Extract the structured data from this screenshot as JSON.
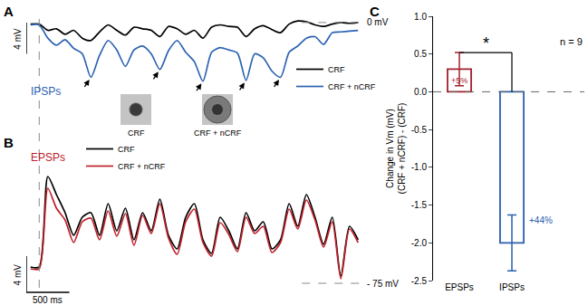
{
  "chart_data": [
    {
      "panel": "A",
      "type": "line",
      "tick_labels": false,
      "x": [
        -100,
        0,
        100,
        200,
        300,
        400,
        500,
        600,
        700,
        800,
        900,
        1000,
        1100,
        1200,
        1300,
        1400,
        1500,
        1600,
        1700,
        1800,
        1900,
        2000,
        2100,
        2200,
        2300,
        2400,
        2500,
        2600,
        2700,
        2800,
        2900,
        3000,
        3100,
        3200,
        3300,
        3400,
        3500,
        3600,
        3700
      ],
      "xlim": [
        -150,
        3750
      ],
      "ylim": [
        -11,
        2.3
      ],
      "series": [
        {
          "name": "CRF",
          "color": "#000000",
          "values": [
            -0.2,
            -0.2,
            -1.0,
            -0.8,
            -1.5,
            -1.0,
            -2.0,
            -2.3,
            -1.2,
            -0.3,
            -1.0,
            -1.6,
            -0.6,
            -0.8,
            -1.0,
            -1.8,
            -0.5,
            -0.8,
            -1.5,
            -1.0,
            -2.0,
            -0.6,
            -0.3,
            -0.5,
            -0.6,
            -1.8,
            -0.8,
            -0.4,
            -0.9,
            -1.3,
            -0.2,
            0.2,
            0.1,
            -0.3,
            -0.5,
            -0.2,
            0.0,
            -0.1,
            0.0
          ]
        },
        {
          "name": "CRF + nCRF",
          "color": "#2b62b2",
          "values": [
            -0.3,
            -0.3,
            -2.0,
            -2.9,
            -2.2,
            -3.3,
            -4.0,
            -7.0,
            -4.2,
            -2.3,
            -3.5,
            -5.6,
            -3.5,
            -3.0,
            -4.0,
            -6.0,
            -3.6,
            -2.3,
            -3.8,
            -5.0,
            -7.5,
            -3.8,
            -3.2,
            -3.5,
            -3.9,
            -7.4,
            -4.0,
            -4.5,
            -6.2,
            -7.0,
            -3.8,
            -3.0,
            -2.0,
            -1.8,
            -2.8,
            -1.3,
            -1.2,
            -1.1,
            -1.0
          ]
        }
      ],
      "label": "IPSPs",
      "onset": 0,
      "reference_line": {
        "value": 0,
        "label": "0 mV"
      },
      "scale_bars": {
        "y": {
          "value": 4,
          "label": "4 mV"
        }
      },
      "stimuli": [
        "CRF",
        "CRF + nCRF"
      ]
    },
    {
      "panel": "B",
      "type": "line",
      "tick_labels": false,
      "x": [
        -100,
        0,
        100,
        200,
        300,
        400,
        500,
        600,
        700,
        800,
        900,
        1000,
        1100,
        1200,
        1300,
        1400,
        1500,
        1600,
        1700,
        1800,
        1900,
        2000,
        2100,
        2200,
        2300,
        2400,
        2500,
        2600,
        2700,
        2800,
        2900,
        3000,
        3100,
        3200,
        3300,
        3400,
        3500,
        3600,
        3700
      ],
      "xlim": [
        -150,
        3750
      ],
      "ylim": [
        -77,
        -58.7
      ],
      "series": [
        {
          "name": "CRF",
          "color": "#000000",
          "values": [
            -73.2,
            -73.2,
            -63.2,
            -65.2,
            -67.2,
            -69.7,
            -67.7,
            -67.2,
            -69.7,
            -66.2,
            -69.2,
            -66.7,
            -70.2,
            -67.2,
            -69.2,
            -65.7,
            -69.7,
            -71.2,
            -67.7,
            -66.2,
            -70.2,
            -71.7,
            -67.7,
            -69.2,
            -71.2,
            -67.2,
            -69.2,
            -68.2,
            -71.2,
            -70.2,
            -66.2,
            -68.7,
            -65.2,
            -67.7,
            -70.7,
            -67.7,
            -74.2,
            -68.7,
            -70.2
          ]
        },
        {
          "name": "CRF + nCRF",
          "color": "#c0202a",
          "values": [
            -73.4,
            -73.4,
            -64.5,
            -66.7,
            -68.0,
            -70.5,
            -68.2,
            -67.8,
            -70.2,
            -67.0,
            -69.8,
            -67.3,
            -70.8,
            -67.5,
            -69.5,
            -66.2,
            -70.0,
            -71.8,
            -68.2,
            -66.8,
            -70.5,
            -72.0,
            -68.3,
            -69.6,
            -71.5,
            -67.7,
            -69.5,
            -68.7,
            -71.6,
            -70.5,
            -66.8,
            -69.0,
            -65.8,
            -68.0,
            -71.0,
            -68.2,
            -74.5,
            -69.0,
            -70.5
          ]
        }
      ],
      "label": "EPSPs",
      "reference_line": {
        "value": -75,
        "label": "- 75 mV"
      },
      "scale_bars": {
        "x": {
          "value": 500,
          "label": "500 ms"
        },
        "y": {
          "value": 4,
          "label": "4 mV"
        }
      }
    },
    {
      "panel": "C",
      "type": "bar",
      "categories": [
        "EPSPs",
        "IPSPs"
      ],
      "values": [
        0.3,
        -2.0
      ],
      "errors": [
        0.22,
        0.37
      ],
      "colors": [
        "#a3202e",
        "#2b5fad"
      ],
      "percent_labels": [
        "+5%",
        "+44%"
      ],
      "y_label": [
        "Change in Vm (mV)",
        "(CRF + nCRF) - (CRF)"
      ],
      "ylim": [
        -2.5,
        1.0
      ],
      "yticks": [
        {
          "value": -2.5,
          "label": "-2.5"
        },
        {
          "value": -2.0,
          "label": "-2.0"
        },
        {
          "value": -1.5,
          "label": "-1.5"
        },
        {
          "value": -1.0,
          "label": "-1.0"
        },
        {
          "value": -0.5,
          "label": "-0.5"
        },
        {
          "value": 0,
          "label": "0.0"
        },
        {
          "value": 0.5,
          "label": "0.5"
        },
        {
          "value": 1.0,
          "label": "1.0"
        }
      ],
      "reference_line": {
        "value": 0
      },
      "note": "n = 9",
      "significance": "*"
    }
  ]
}
